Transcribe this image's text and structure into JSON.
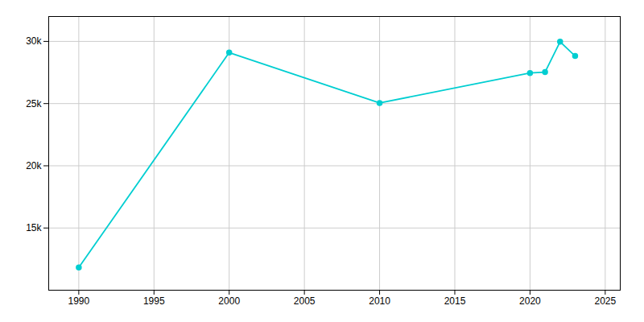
{
  "chart_data": {
    "type": "line",
    "x": [
      1990,
      2000,
      2010,
      2020,
      2021,
      2022,
      2023
    ],
    "values": [
      11821,
      29100,
      25048,
      27456,
      27531,
      29973,
      28827
    ],
    "color": "#00CED1",
    "marker": "o",
    "xlim": [
      1988,
      2026
    ],
    "ylim": [
      10000,
      32000
    ],
    "xticks": [
      1990,
      1995,
      2000,
      2005,
      2010,
      2015,
      2020,
      2025
    ],
    "yticks": [
      {
        "value": 15000,
        "label": "15k"
      },
      {
        "value": 20000,
        "label": "20k"
      },
      {
        "value": 25000,
        "label": "25k"
      },
      {
        "value": 30000,
        "label": "30k"
      }
    ],
    "grid": true
  }
}
